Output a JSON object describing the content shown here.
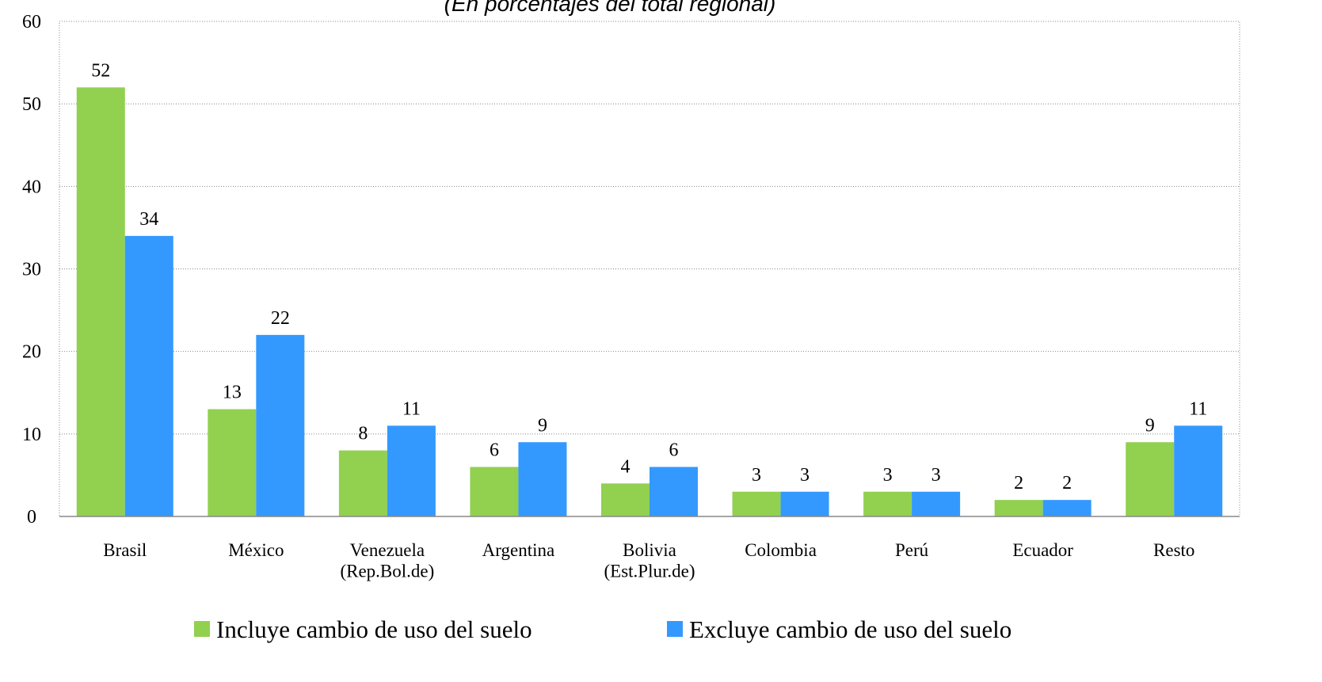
{
  "chart_data": {
    "type": "bar",
    "subtitle": "(En porcentajes del total regional)",
    "categories": [
      "Brasil",
      "México",
      "Venezuela\n(Rep.Bol.de)",
      "Argentina",
      "Bolivia\n(Est.Plur.de)",
      "Colombia",
      "Perú",
      "Ecuador",
      "Resto"
    ],
    "series": [
      {
        "name": "Incluye cambio de uso del suelo",
        "color": "#92d050",
        "values": [
          52,
          13,
          8,
          6,
          4,
          3,
          3,
          2,
          9
        ]
      },
      {
        "name": "Excluye cambio de uso del suelo",
        "color": "#3399ff",
        "values": [
          34,
          22,
          11,
          9,
          6,
          3,
          3,
          2,
          11
        ]
      }
    ],
    "ylim": [
      0,
      60
    ],
    "yticks": [
      0,
      10,
      20,
      30,
      40,
      50,
      60
    ],
    "grid": true,
    "legend": "bottom"
  }
}
